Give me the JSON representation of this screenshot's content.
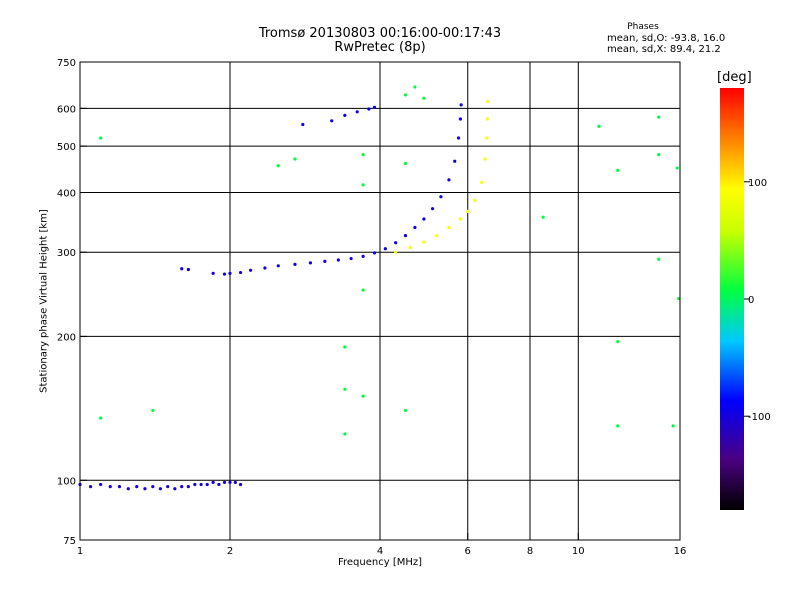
{
  "chart_data": {
    "type": "scatter",
    "title": "Tromsø 20130803 00:16:00-00:17:43",
    "subtitle": "RwPretec (8p)",
    "xlabel": "Frequency [MHz]",
    "ylabel": "Stationary phase Virtual Height [km]",
    "x_scale": "log",
    "y_scale": "log",
    "xlim": [
      1,
      16
    ],
    "ylim": [
      75,
      750
    ],
    "x_ticks": [
      1,
      2,
      4,
      6,
      8,
      10,
      16
    ],
    "y_ticks": [
      75,
      100,
      200,
      300,
      400,
      500,
      600,
      750
    ],
    "x_gridlines": [
      2,
      4,
      6,
      8,
      10
    ],
    "y_gridlines": [
      100,
      200,
      300,
      400,
      500,
      600
    ],
    "stats": {
      "heading": "Phases",
      "line_o": "mean, sd,O: -93.8, 16.0",
      "line_x": "mean, sd,X:  89.4, 21.2"
    },
    "colorbar": {
      "label": "[deg]",
      "range": [
        -180,
        180
      ],
      "ticks": [
        100,
        0,
        -100
      ]
    },
    "series": [
      {
        "name": "O-mode E-region trace",
        "phase_deg": -105,
        "points": [
          [
            1.0,
            98
          ],
          [
            1.05,
            97
          ],
          [
            1.1,
            98
          ],
          [
            1.15,
            97
          ],
          [
            1.2,
            97
          ],
          [
            1.25,
            96
          ],
          [
            1.3,
            97
          ],
          [
            1.35,
            96
          ],
          [
            1.4,
            97
          ],
          [
            1.45,
            96
          ],
          [
            1.5,
            97
          ],
          [
            1.55,
            96
          ],
          [
            1.6,
            97
          ],
          [
            1.65,
            97
          ],
          [
            1.7,
            98
          ],
          [
            1.75,
            98
          ],
          [
            1.8,
            98
          ],
          [
            1.85,
            99
          ],
          [
            1.9,
            98
          ],
          [
            1.95,
            99
          ],
          [
            2.0,
            99
          ],
          [
            2.05,
            99
          ],
          [
            2.1,
            98
          ]
        ]
      },
      {
        "name": "O-mode F-region trace",
        "phase_deg": -100,
        "points": [
          [
            1.6,
            277
          ],
          [
            1.65,
            276
          ],
          [
            1.85,
            271
          ],
          [
            1.95,
            270
          ],
          [
            2.0,
            271
          ],
          [
            2.1,
            272
          ],
          [
            2.2,
            275
          ],
          [
            2.35,
            278
          ],
          [
            2.5,
            281
          ],
          [
            2.7,
            283
          ],
          [
            2.9,
            285
          ],
          [
            3.1,
            287
          ],
          [
            3.3,
            289
          ],
          [
            3.5,
            291
          ],
          [
            3.7,
            294
          ],
          [
            3.9,
            299
          ],
          [
            4.1,
            305
          ],
          [
            4.3,
            314
          ],
          [
            4.5,
            325
          ],
          [
            4.7,
            338
          ],
          [
            4.9,
            352
          ],
          [
            5.1,
            370
          ],
          [
            5.3,
            392
          ],
          [
            5.5,
            425
          ],
          [
            5.65,
            465
          ],
          [
            5.75,
            520
          ],
          [
            5.8,
            570
          ],
          [
            5.82,
            610
          ]
        ]
      },
      {
        "name": "O-mode Es echoes",
        "phase_deg": -95,
        "points": [
          [
            2.8,
            555
          ],
          [
            3.2,
            565
          ],
          [
            3.4,
            580
          ],
          [
            3.6,
            590
          ],
          [
            3.8,
            598
          ],
          [
            3.9,
            603
          ]
        ]
      },
      {
        "name": "X-mode F-region trace",
        "phase_deg": 90,
        "points": [
          [
            4.3,
            300
          ],
          [
            4.6,
            307
          ],
          [
            4.9,
            315
          ],
          [
            5.2,
            325
          ],
          [
            5.5,
            338
          ],
          [
            5.8,
            352
          ],
          [
            6.0,
            365
          ],
          [
            6.2,
            385
          ],
          [
            6.4,
            420
          ],
          [
            6.5,
            470
          ],
          [
            6.55,
            520
          ],
          [
            6.57,
            570
          ],
          [
            6.58,
            620
          ]
        ]
      },
      {
        "name": "Scattered noise",
        "phase_deg": 0,
        "points": [
          [
            1.1,
            520
          ],
          [
            1.1,
            135
          ],
          [
            1.4,
            140
          ],
          [
            2.5,
            455
          ],
          [
            2.7,
            470
          ],
          [
            3.4,
            190
          ],
          [
            3.4,
            155
          ],
          [
            3.4,
            125
          ],
          [
            3.7,
            480
          ],
          [
            3.7,
            415
          ],
          [
            3.7,
            250
          ],
          [
            3.7,
            150
          ],
          [
            4.5,
            640
          ],
          [
            4.5,
            460
          ],
          [
            4.5,
            140
          ],
          [
            4.7,
            665
          ],
          [
            4.9,
            630
          ],
          [
            8.5,
            355
          ],
          [
            11.0,
            550
          ],
          [
            12.0,
            445
          ],
          [
            12.0,
            195
          ],
          [
            12.0,
            130
          ],
          [
            14.5,
            575
          ],
          [
            14.5,
            480
          ],
          [
            14.5,
            290
          ],
          [
            15.5,
            130
          ],
          [
            15.8,
            450
          ],
          [
            15.9,
            240
          ]
        ]
      }
    ]
  }
}
